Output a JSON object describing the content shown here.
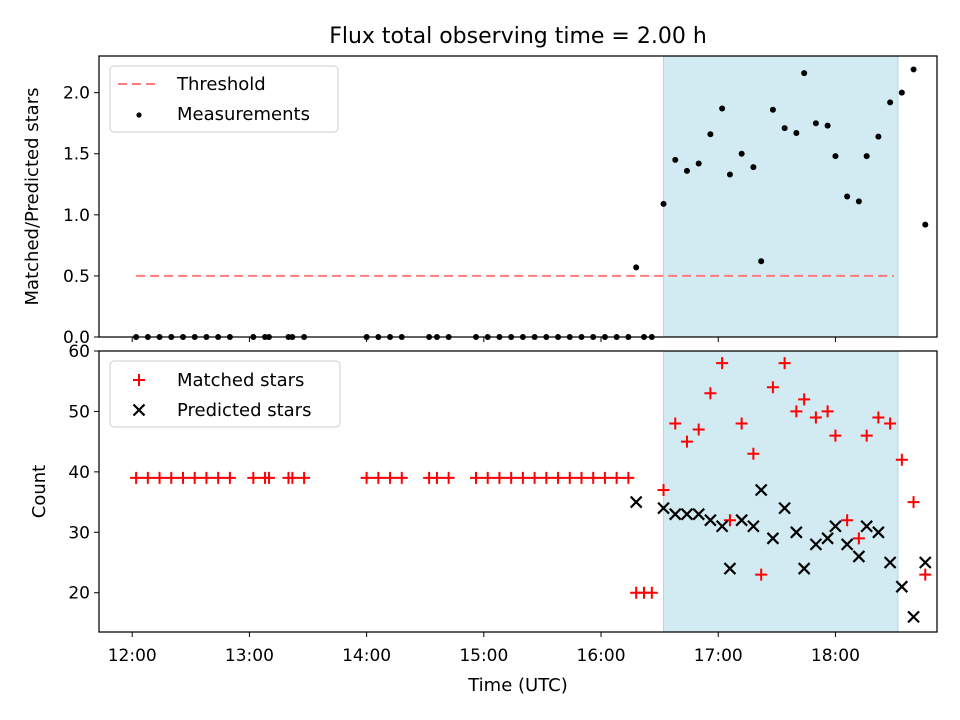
{
  "title": "Flux total observing time = 2.00 h",
  "colors": {
    "threshold": "#ff7b7b",
    "measurement": "#000000",
    "matched": "#ff0000",
    "predicted": "#000000",
    "shade": "#add8e6"
  },
  "chart_data": [
    {
      "type": "scatter",
      "ylabel": "Matched/Predicted stars",
      "ylim": [
        0,
        2.3
      ],
      "yticks": [
        "0.0",
        "0.5",
        "1.0",
        "1.5",
        "2.0"
      ],
      "ytick_values": [
        0,
        0.5,
        1.0,
        1.5,
        2.0
      ],
      "xlim": [
        "11:43",
        "18:52"
      ],
      "shaded_span": [
        "16:32",
        "18:32"
      ],
      "legend_position": "upper left",
      "threshold": {
        "name": "Threshold",
        "value": 0.5,
        "x_range": [
          "12:02",
          "18:30"
        ],
        "style": "dashed"
      },
      "series": [
        {
          "name": "Measurements",
          "marker": "dot",
          "points": [
            [
              "12:02",
              0
            ],
            [
              "12:08",
              0
            ],
            [
              "12:14",
              0
            ],
            [
              "12:20",
              0
            ],
            [
              "12:26",
              0
            ],
            [
              "12:32",
              0
            ],
            [
              "12:38",
              0
            ],
            [
              "12:44",
              0
            ],
            [
              "12:50",
              0
            ],
            [
              "13:02",
              0
            ],
            [
              "13:08",
              0
            ],
            [
              "13:10",
              0
            ],
            [
              "13:20",
              0
            ],
            [
              "13:22",
              0
            ],
            [
              "13:28",
              0
            ],
            [
              "14:00",
              0
            ],
            [
              "14:06",
              0
            ],
            [
              "14:12",
              0
            ],
            [
              "14:18",
              0
            ],
            [
              "14:32",
              0
            ],
            [
              "14:36",
              0
            ],
            [
              "14:42",
              0
            ],
            [
              "14:56",
              0
            ],
            [
              "15:02",
              0
            ],
            [
              "15:08",
              0
            ],
            [
              "15:14",
              0
            ],
            [
              "15:20",
              0
            ],
            [
              "15:26",
              0
            ],
            [
              "15:32",
              0
            ],
            [
              "15:38",
              0
            ],
            [
              "15:44",
              0
            ],
            [
              "15:50",
              0
            ],
            [
              "15:56",
              0
            ],
            [
              "16:02",
              0
            ],
            [
              "16:08",
              0
            ],
            [
              "16:14",
              0
            ],
            [
              "16:18",
              0.57
            ],
            [
              "16:22",
              0
            ],
            [
              "16:26",
              0
            ],
            [
              "16:32",
              1.09
            ],
            [
              "16:38",
              1.45
            ],
            [
              "16:44",
              1.36
            ],
            [
              "16:50",
              1.42
            ],
            [
              "16:56",
              1.66
            ],
            [
              "17:02",
              1.87
            ],
            [
              "17:06",
              1.33
            ],
            [
              "17:12",
              1.5
            ],
            [
              "17:18",
              1.39
            ],
            [
              "17:22",
              0.62
            ],
            [
              "17:28",
              1.86
            ],
            [
              "17:34",
              1.71
            ],
            [
              "17:40",
              1.67
            ],
            [
              "17:44",
              2.16
            ],
            [
              "17:50",
              1.75
            ],
            [
              "17:56",
              1.73
            ],
            [
              "18:00",
              1.48
            ],
            [
              "18:06",
              1.15
            ],
            [
              "18:12",
              1.11
            ],
            [
              "18:16",
              1.48
            ],
            [
              "18:22",
              1.64
            ],
            [
              "18:28",
              1.92
            ],
            [
              "18:34",
              2.0
            ],
            [
              "18:40",
              2.19
            ],
            [
              "18:46",
              0.92
            ]
          ]
        }
      ]
    },
    {
      "type": "scatter",
      "xlabel": "Time (UTC)",
      "ylabel": "Count",
      "ylim": [
        13.5,
        60
      ],
      "yticks": [
        "20",
        "30",
        "40",
        "50",
        "60"
      ],
      "ytick_values": [
        20,
        30,
        40,
        50,
        60
      ],
      "xlim": [
        "11:43",
        "18:52"
      ],
      "xticks": [
        "12:00",
        "13:00",
        "14:00",
        "15:00",
        "16:00",
        "17:00",
        "18:00"
      ],
      "shaded_span": [
        "16:32",
        "18:32"
      ],
      "legend_position": "upper left",
      "series": [
        {
          "name": "Matched stars",
          "marker": "plus",
          "points": [
            [
              "12:02",
              39
            ],
            [
              "12:08",
              39
            ],
            [
              "12:14",
              39
            ],
            [
              "12:20",
              39
            ],
            [
              "12:26",
              39
            ],
            [
              "12:32",
              39
            ],
            [
              "12:38",
              39
            ],
            [
              "12:44",
              39
            ],
            [
              "12:50",
              39
            ],
            [
              "13:02",
              39
            ],
            [
              "13:08",
              39
            ],
            [
              "13:10",
              39
            ],
            [
              "13:20",
              39
            ],
            [
              "13:22",
              39
            ],
            [
              "13:28",
              39
            ],
            [
              "14:00",
              39
            ],
            [
              "14:06",
              39
            ],
            [
              "14:12",
              39
            ],
            [
              "14:18",
              39
            ],
            [
              "14:32",
              39
            ],
            [
              "14:36",
              39
            ],
            [
              "14:42",
              39
            ],
            [
              "14:56",
              39
            ],
            [
              "15:02",
              39
            ],
            [
              "15:08",
              39
            ],
            [
              "15:14",
              39
            ],
            [
              "15:20",
              39
            ],
            [
              "15:26",
              39
            ],
            [
              "15:32",
              39
            ],
            [
              "15:38",
              39
            ],
            [
              "15:44",
              39
            ],
            [
              "15:50",
              39
            ],
            [
              "15:56",
              39
            ],
            [
              "16:02",
              39
            ],
            [
              "16:08",
              39
            ],
            [
              "16:14",
              39
            ],
            [
              "16:18",
              20
            ],
            [
              "16:22",
              20
            ],
            [
              "16:26",
              20
            ],
            [
              "16:32",
              37
            ],
            [
              "16:38",
              48
            ],
            [
              "16:44",
              45
            ],
            [
              "16:50",
              47
            ],
            [
              "16:56",
              53
            ],
            [
              "17:02",
              58
            ],
            [
              "17:06",
              32
            ],
            [
              "17:12",
              48
            ],
            [
              "17:18",
              43
            ],
            [
              "17:22",
              23
            ],
            [
              "17:28",
              54
            ],
            [
              "17:34",
              58
            ],
            [
              "17:40",
              50
            ],
            [
              "17:44",
              52
            ],
            [
              "17:50",
              49
            ],
            [
              "17:56",
              50
            ],
            [
              "18:00",
              46
            ],
            [
              "18:06",
              32
            ],
            [
              "18:12",
              29
            ],
            [
              "18:16",
              46
            ],
            [
              "18:22",
              49
            ],
            [
              "18:28",
              48
            ],
            [
              "18:34",
              42
            ],
            [
              "18:40",
              35
            ],
            [
              "18:46",
              23
            ]
          ]
        },
        {
          "name": "Predicted stars",
          "marker": "x",
          "points": [
            [
              "16:18",
              35
            ],
            [
              "16:32",
              34
            ],
            [
              "16:38",
              33
            ],
            [
              "16:44",
              33
            ],
            [
              "16:50",
              33
            ],
            [
              "16:56",
              32
            ],
            [
              "17:02",
              31
            ],
            [
              "17:06",
              24
            ],
            [
              "17:12",
              32
            ],
            [
              "17:18",
              31
            ],
            [
              "17:22",
              37
            ],
            [
              "17:28",
              29
            ],
            [
              "17:34",
              34
            ],
            [
              "17:40",
              30
            ],
            [
              "17:44",
              24
            ],
            [
              "17:50",
              28
            ],
            [
              "17:56",
              29
            ],
            [
              "18:00",
              31
            ],
            [
              "18:06",
              28
            ],
            [
              "18:12",
              26
            ],
            [
              "18:16",
              31
            ],
            [
              "18:22",
              30
            ],
            [
              "18:28",
              25
            ],
            [
              "18:34",
              21
            ],
            [
              "18:40",
              16
            ],
            [
              "18:46",
              25
            ]
          ]
        }
      ]
    }
  ]
}
